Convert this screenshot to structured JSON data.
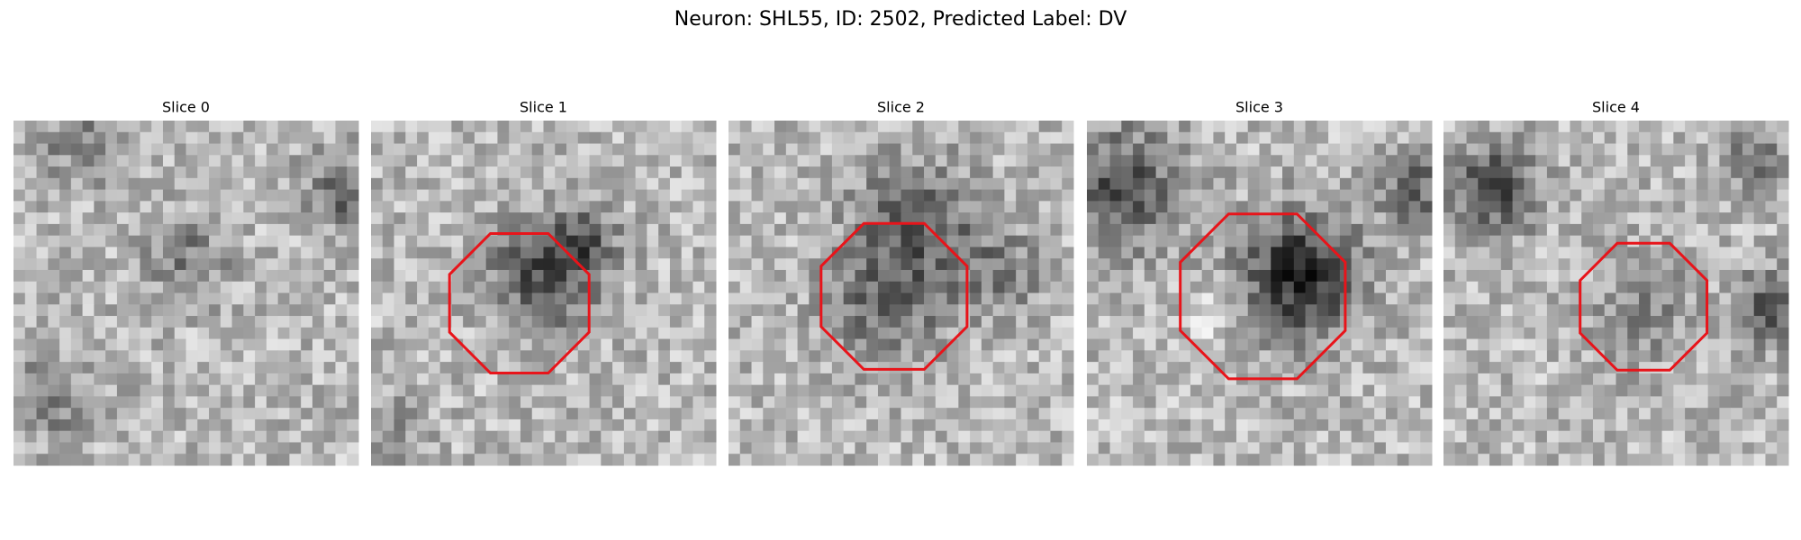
{
  "header": {
    "title": "Neuron: SHL55, ID: 2502, Predicted Label: DV"
  },
  "panels": [
    {
      "title": "Slice 0"
    },
    {
      "title": "Slice 1"
    },
    {
      "title": "Slice 2"
    },
    {
      "title": "Slice 3"
    },
    {
      "title": "Slice 4"
    }
  ]
}
